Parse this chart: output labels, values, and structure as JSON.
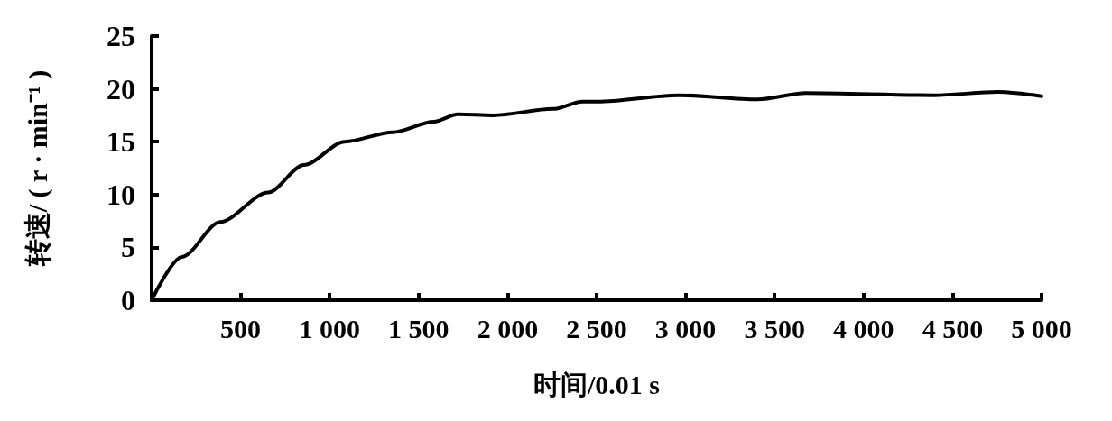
{
  "chart_data": {
    "type": "line",
    "xlabel": "时间/0.01 s",
    "ylabel": "转速/ ( r · min⁻¹ )",
    "x": [
      0,
      170,
      385,
      655,
      855,
      1085,
      1355,
      1585,
      1720,
      1920,
      2255,
      2420,
      2505,
      2960,
      3405,
      3675,
      4395,
      4755,
      5000
    ],
    "series": [
      {
        "color": "#000000",
        "values": [
          0,
          4.1,
          7.4,
          10.2,
          12.8,
          15.0,
          15.9,
          16.9,
          17.6,
          17.5,
          18.1,
          18.8,
          18.8,
          19.4,
          19.0,
          19.6,
          19.4,
          19.7,
          19.3
        ]
      }
    ],
    "xlim": [
      0,
      5000
    ],
    "ylim": [
      0,
      25
    ],
    "xticks": [
      {
        "value": 500,
        "label": "500"
      },
      {
        "value": 1000,
        "label": "1 000"
      },
      {
        "value": 1500,
        "label": "1 500"
      },
      {
        "value": 2000,
        "label": "2 000"
      },
      {
        "value": 2500,
        "label": "2 500"
      },
      {
        "value": 3000,
        "label": "3 000"
      },
      {
        "value": 3500,
        "label": "3 500"
      },
      {
        "value": 4000,
        "label": "4 000"
      },
      {
        "value": 4500,
        "label": "4 500"
      },
      {
        "value": 5000,
        "label": "5 000"
      }
    ],
    "yticks": [
      0,
      5,
      10,
      15,
      20,
      25
    ],
    "grid": false,
    "marker": "none",
    "line_style": "solid"
  }
}
